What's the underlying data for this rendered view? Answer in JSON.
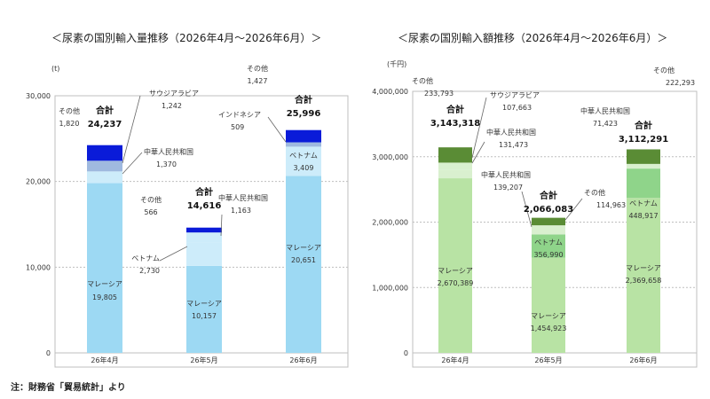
{
  "note": "注：財務省「貿易統計」より",
  "chart_data": [
    {
      "type": "bar",
      "stacked": true,
      "title": "＜尿素の国別輸入量推移（2026年4月～2026年6月）＞",
      "unit_label": "(t)",
      "categories": [
        "26年4月",
        "26年5月",
        "26年6月"
      ],
      "ylim": [
        0,
        30000
      ],
      "yticks": [
        0,
        10000,
        20000,
        30000
      ],
      "ytick_labels": [
        "0",
        "10,000",
        "20,000",
        "30,000"
      ],
      "grid": true,
      "total_label": "合計",
      "series_colors": {
        "マレーシア": "#9dd9f3",
        "ベトナム": "#cdecfa",
        "中華人民共和国": "#cdecfa",
        "サウジアラビア": "#9fb9df",
        "インドネシア": "#9fb9df",
        "その他": "#0a1bd9"
      },
      "stacks": [
        {
          "category": "26年4月",
          "total": 24237,
          "total_text": "24,237",
          "segments": [
            {
              "name": "マレーシア",
              "value": 19805,
              "value_text": "19,805"
            },
            {
              "name": "中華人民共和国",
              "value": 1370,
              "value_text": "1,370"
            },
            {
              "name": "サウジアラビア",
              "value": 1242,
              "value_text": "1,242"
            },
            {
              "name": "その他",
              "value": 1820,
              "value_text": "1,820"
            }
          ]
        },
        {
          "category": "26年5月",
          "total": 14616,
          "total_text": "14,616",
          "segments": [
            {
              "name": "マレーシア",
              "value": 10157,
              "value_text": "10,157"
            },
            {
              "name": "ベトナム",
              "value": 2730,
              "value_text": "2,730"
            },
            {
              "name": "中華人民共和国",
              "value": 1163,
              "value_text": "1,163"
            },
            {
              "name": "その他",
              "value": 566,
              "value_text": "566"
            }
          ]
        },
        {
          "category": "26年6月",
          "total": 25996,
          "total_text": "25,996",
          "segments": [
            {
              "name": "マレーシア",
              "value": 20651,
              "value_text": "20,651"
            },
            {
              "name": "ベトナム",
              "value": 3409,
              "value_text": "3,409"
            },
            {
              "name": "インドネシア",
              "value": 509,
              "value_text": "509"
            },
            {
              "name": "その他",
              "value": 1427,
              "value_text": "1,427"
            }
          ]
        }
      ]
    },
    {
      "type": "bar",
      "stacked": true,
      "title": "＜尿素の国別輸入額推移（2026年4月～2026年6月）＞",
      "unit_label": "(千円)",
      "categories": [
        "26年4月",
        "26年5月",
        "26年6月"
      ],
      "ylim": [
        0,
        4000000
      ],
      "yticks": [
        0,
        1000000,
        2000000,
        3000000,
        4000000
      ],
      "ytick_labels": [
        "0",
        "1,000,000",
        "2,000,000",
        "3,000,000",
        "4,000,000"
      ],
      "grid": true,
      "total_label": "合計",
      "series_colors": {
        "マレーシア": "#b8e3a4",
        "ベトナム": "#8fd48a",
        "中華人民共和国": "#d9f0cf",
        "サウジアラビア": "#d9f0cf",
        "その他": "#5a8c35"
      },
      "stacks": [
        {
          "category": "26年4月",
          "total": 3143318,
          "total_text": "3,143,318",
          "segments": [
            {
              "name": "マレーシア",
              "value": 2670389,
              "value_text": "2,670,389"
            },
            {
              "name": "中華人民共和国",
              "value": 131473,
              "value_text": "131,473"
            },
            {
              "name": "サウジアラビア",
              "value": 107663,
              "value_text": "107,663"
            },
            {
              "name": "その他",
              "value": 233793,
              "value_text": "233,793"
            }
          ]
        },
        {
          "category": "26年5月",
          "total": 2066083,
          "total_text": "2,066,083",
          "segments": [
            {
              "name": "マレーシア",
              "value": 1454923,
              "value_text": "1,454,923"
            },
            {
              "name": "ベトナム",
              "value": 356990,
              "value_text": "356,990"
            },
            {
              "name": "中華人民共和国",
              "value": 139207,
              "value_text": "139,207"
            },
            {
              "name": "その他",
              "value": 114963,
              "value_text": "114,963"
            }
          ]
        },
        {
          "category": "26年6月",
          "total": 3112291,
          "total_text": "3,112,291",
          "segments": [
            {
              "name": "マレーシア",
              "value": 2369658,
              "value_text": "2,369,658"
            },
            {
              "name": "ベトナム",
              "value": 448917,
              "value_text": "448,917"
            },
            {
              "name": "中華人民共和国",
              "value": 71423,
              "value_text": "71,423"
            },
            {
              "name": "その他",
              "value": 222293,
              "value_text": "222,293"
            }
          ]
        }
      ]
    }
  ]
}
